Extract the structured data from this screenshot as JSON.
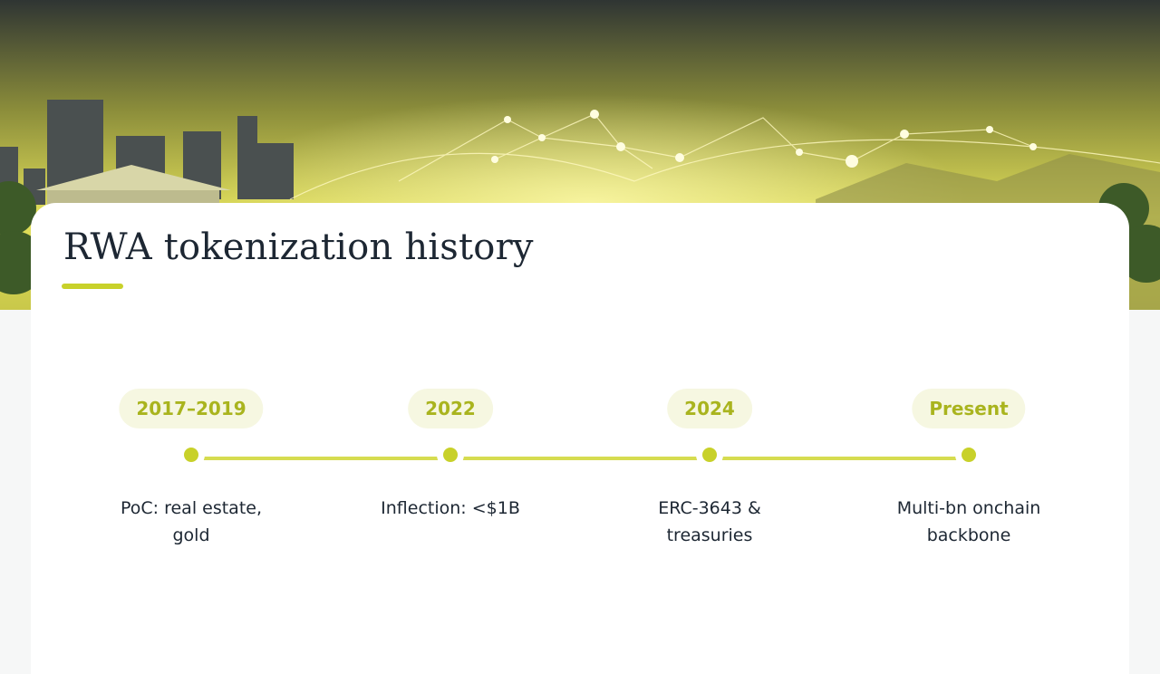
{
  "title": "RWA tokenization history",
  "timeline": [
    {
      "period": "2017–2019",
      "description": "PoC: real estate, gold"
    },
    {
      "period": "2022",
      "description": "Inflection: <$1B"
    },
    {
      "period": "2024",
      "description": "ERC-3643 & treasuries"
    },
    {
      "period": "Present",
      "description": "Multi-bn onchain backbone"
    }
  ]
}
